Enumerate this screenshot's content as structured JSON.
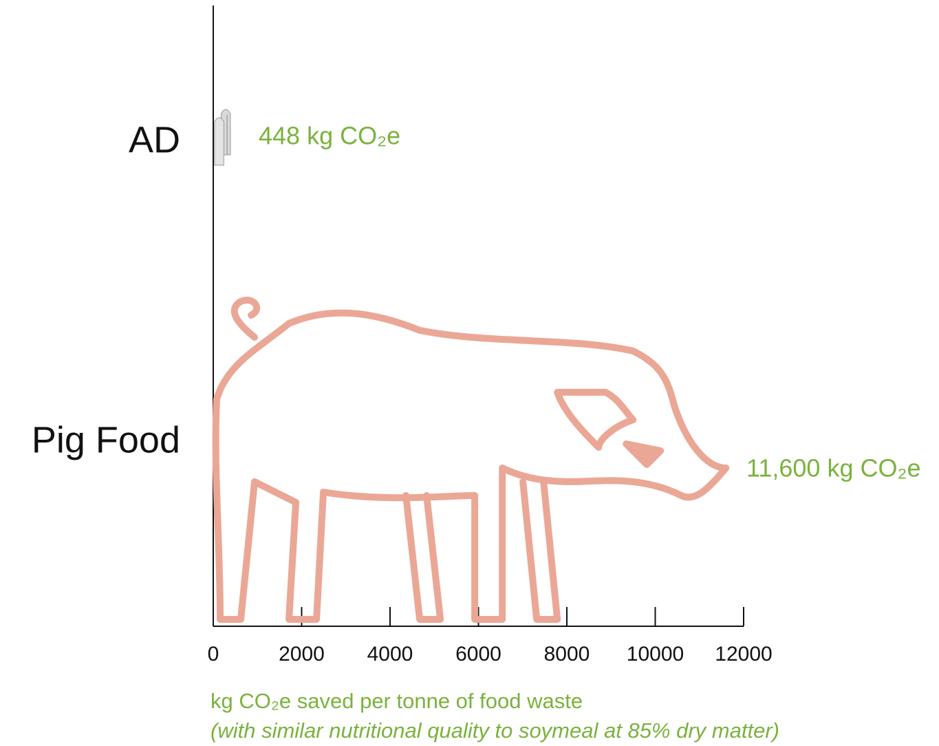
{
  "chart_data": {
    "type": "pictogram-bar",
    "categories": [
      "AD",
      "Pig Food"
    ],
    "values": [
      448,
      11600
    ],
    "value_labels": [
      "448 kg CO₂e",
      "11,600 kg CO₂e"
    ],
    "color": "#eba796",
    "label_color": "#7ab23c",
    "xlabel": "kg CO₂e saved per tonne of food waste",
    "xlabel_note": "(with similar nutritional quality to soymeal at 85% dry matter)",
    "xlim": [
      0,
      12000
    ],
    "xticks": [
      0,
      2000,
      4000,
      6000,
      8000,
      10000,
      12000
    ]
  }
}
